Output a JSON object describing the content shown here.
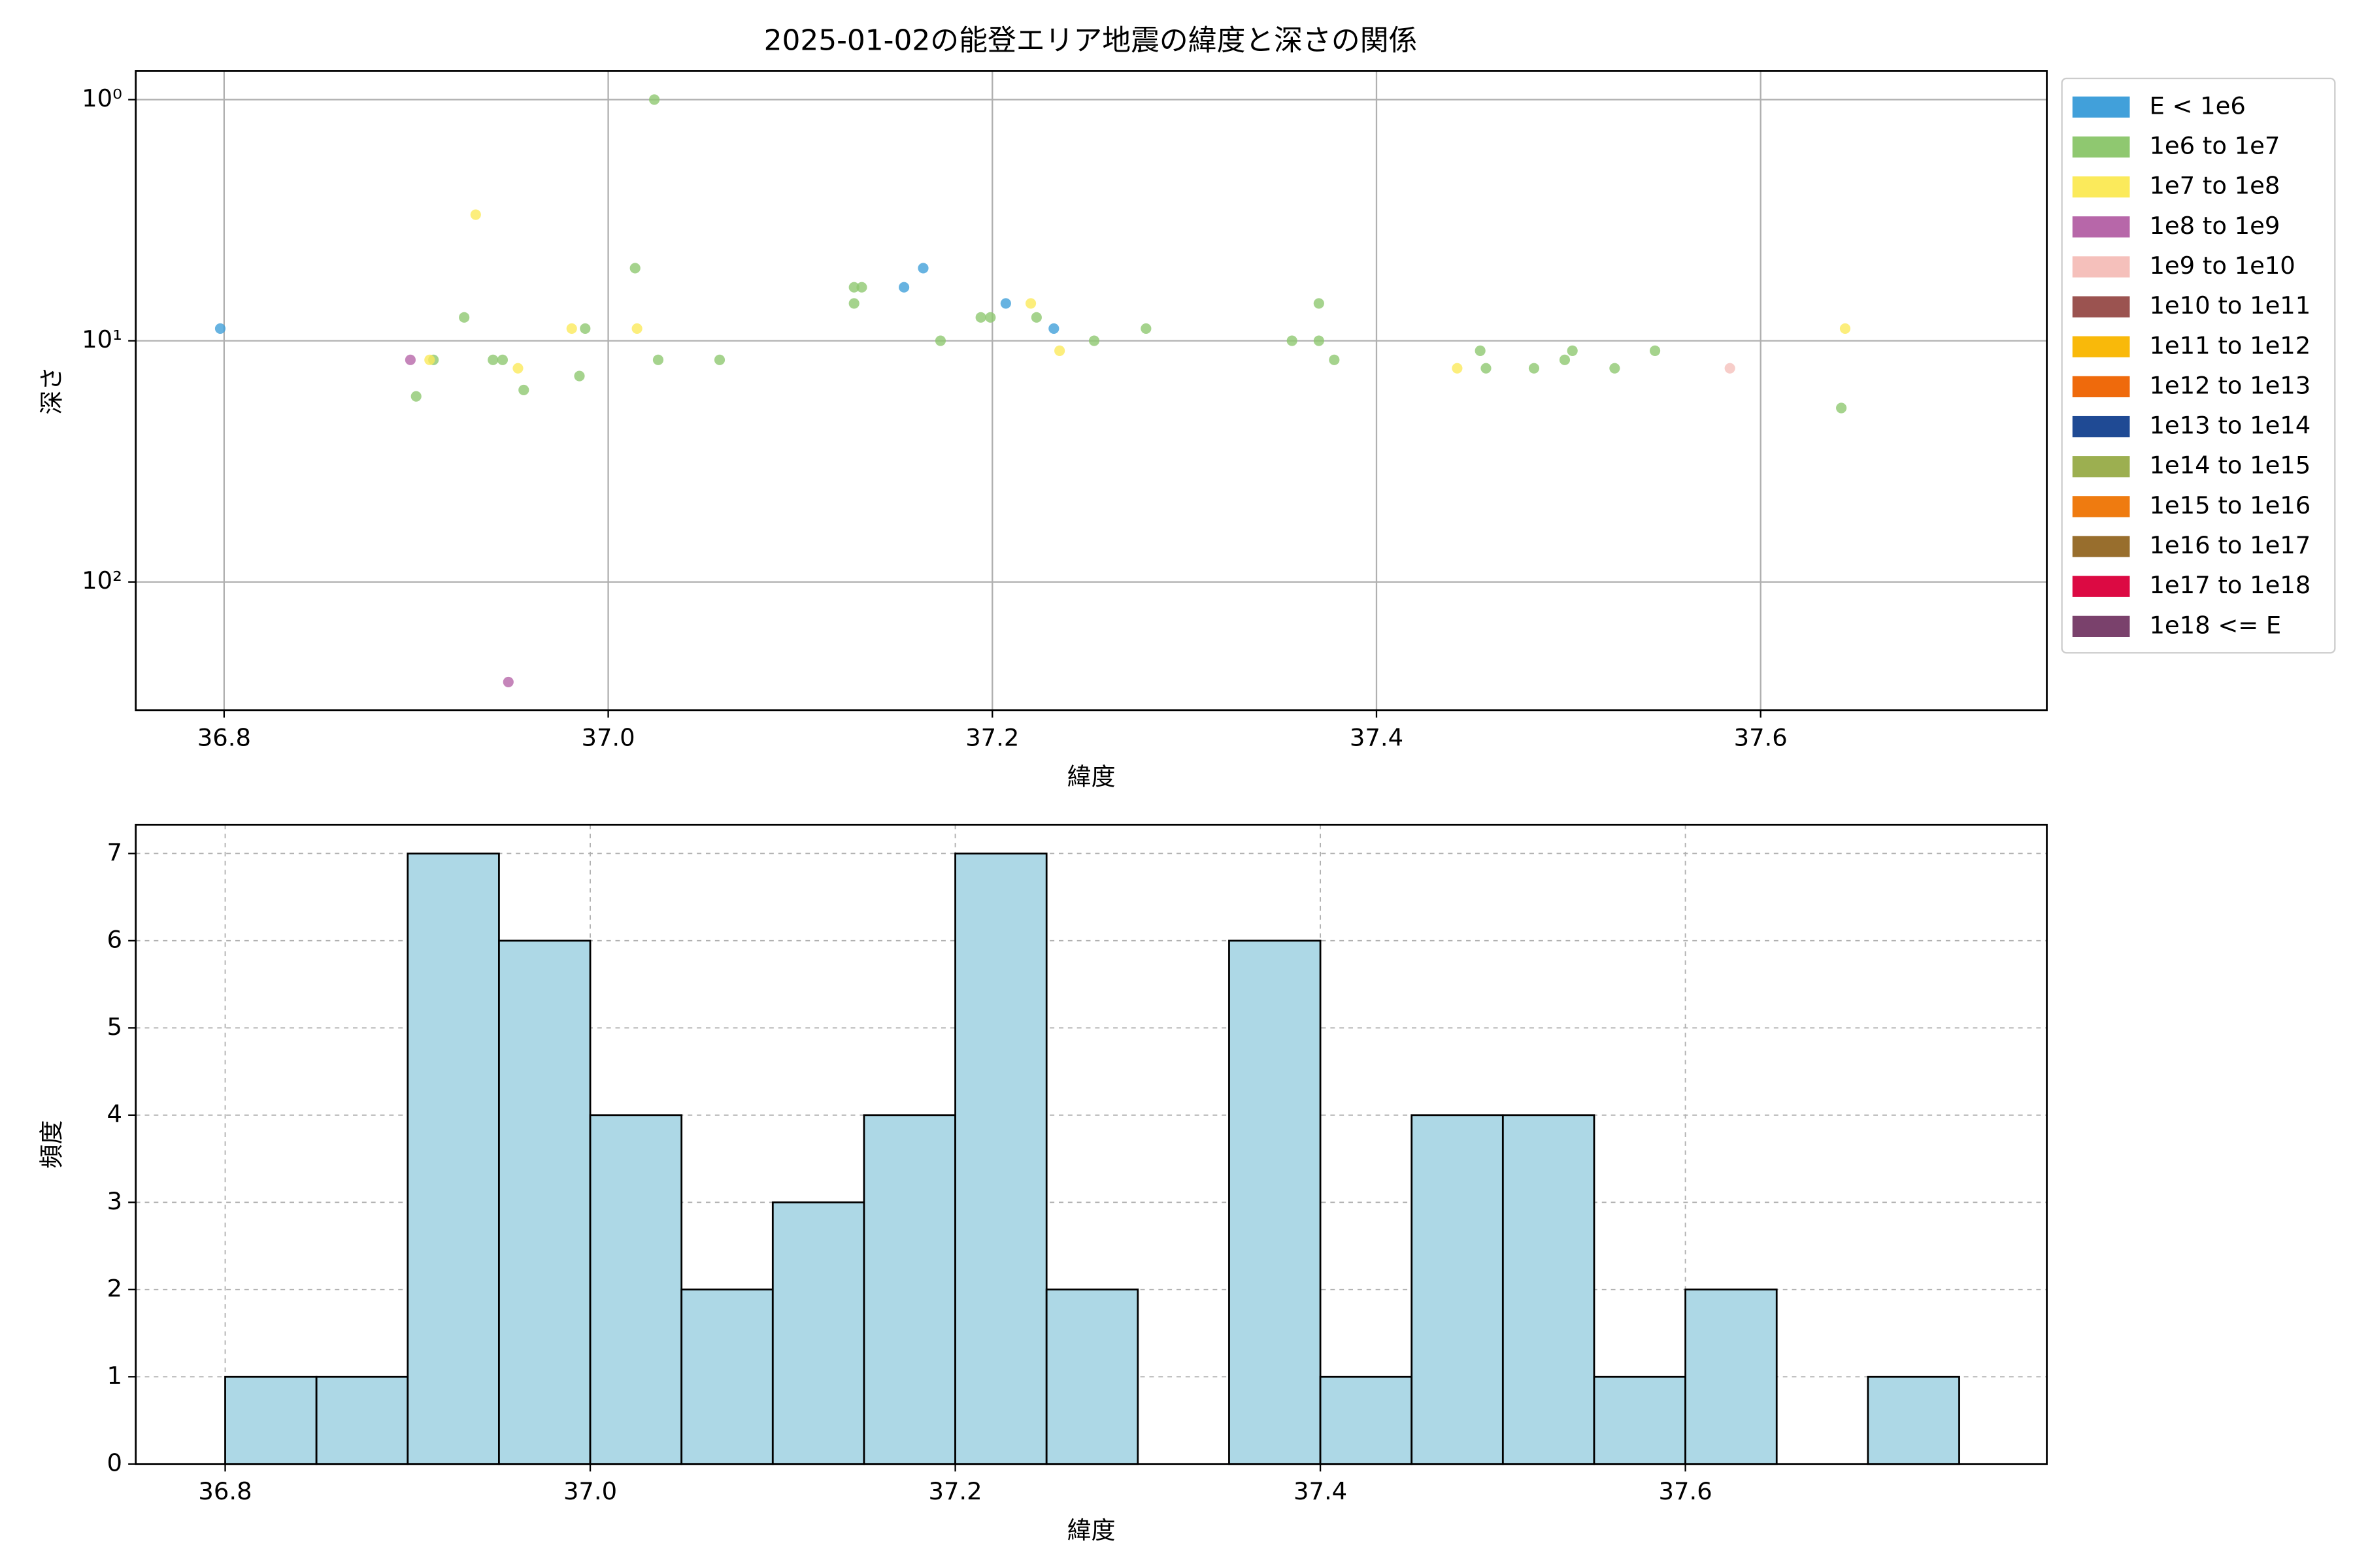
{
  "chart_data": [
    {
      "type": "scatter",
      "title": "2025-01-02の能登エリア地震の緯度と深さの関係",
      "xlabel": "緯度",
      "ylabel": "深さ",
      "log_y": true,
      "grid": true,
      "legend": "right",
      "xlim": [
        36.754,
        37.749
      ],
      "xticks": [
        36.8,
        {
          "value": 37,
          "label": "37.0"
        },
        37.2,
        37.4,
        37.6
      ],
      "ylim": [
        340,
        0.76
      ],
      "yticks": [
        {
          "value": 1,
          "label": "10⁰"
        },
        {
          "value": 10,
          "label": "10¹"
        },
        {
          "value": 100,
          "label": "10²"
        }
      ],
      "series": [
        {
          "name": "E < 1e6",
          "color": "#41a0da",
          "x": [
            36.798,
            37.154,
            37.164,
            37.207,
            37.232
          ],
          "values": [
            8.9,
            6,
            5,
            7,
            8.9
          ]
        },
        {
          "name": "1e6 to 1e7",
          "color": "#8fc870",
          "x": [
            36.909,
            36.925,
            36.94,
            36.945,
            36.956,
            36.985,
            36.988,
            36.9,
            37.014,
            37.024,
            37.026,
            37.058,
            37.128,
            37.132,
            37.128,
            37.173,
            37.194,
            37.199,
            37.223,
            37.253,
            37.28,
            37.356,
            37.37,
            37.37,
            37.378,
            37.454,
            37.457,
            37.482,
            37.498,
            37.502,
            37.524,
            37.545,
            37.642
          ],
          "values": [
            12,
            8,
            12,
            12,
            16,
            14,
            8.9,
            17,
            5,
            1,
            12,
            12,
            6,
            6,
            7,
            10,
            8,
            8,
            8,
            10,
            8.9,
            10,
            7,
            10,
            12,
            11,
            13,
            13,
            12,
            11,
            13,
            11,
            19
          ]
        },
        {
          "name": "1e7 to 1e8",
          "color": "#fbea5b",
          "x": [
            36.907,
            36.931,
            36.953,
            36.981,
            37.015,
            37.22,
            37.235,
            37.442,
            37.644
          ],
          "values": [
            12,
            3,
            13,
            8.9,
            8.9,
            7,
            11,
            13,
            8.9
          ]
        },
        {
          "name": "1e8 to 1e9",
          "color": "#b767a9",
          "x": [
            36.897,
            36.948
          ],
          "values": [
            12,
            260
          ]
        },
        {
          "name": "1e9 to 1e10",
          "color": "#f5c0bb",
          "x": [
            37.584
          ],
          "values": [
            13
          ]
        },
        {
          "name": "1e10 to 1e11",
          "color": "#9b5350",
          "x": [],
          "values": []
        },
        {
          "name": "1e11 to 1e12",
          "color": "#f9b90a",
          "x": [],
          "values": []
        },
        {
          "name": "1e12 to 1e13",
          "color": "#ef6a0c",
          "x": [],
          "values": []
        },
        {
          "name": "1e13 to 1e14",
          "color": "#1f4a94",
          "x": [],
          "values": []
        },
        {
          "name": "1e14 to 1e15",
          "color": "#9caf50",
          "x": [],
          "values": []
        },
        {
          "name": "1e15 to 1e16",
          "color": "#ef7b10",
          "x": [],
          "values": []
        },
        {
          "name": "1e16 to 1e17",
          "color": "#986e2d",
          "x": [],
          "values": []
        },
        {
          "name": "1e17 to 1e18",
          "color": "#dc0a43",
          "x": [],
          "values": []
        },
        {
          "name": "1e18 <= E",
          "color": "#7a416c",
          "x": [],
          "values": []
        }
      ]
    },
    {
      "type": "histogram",
      "xlabel": "緯度",
      "ylabel": "頻度",
      "color": "#add8e6",
      "grid": true,
      "xlim": [
        36.751,
        37.798
      ],
      "xticks": [
        36.8,
        {
          "value": 37,
          "label": "37.0"
        },
        37.2,
        37.4,
        37.6
      ],
      "ylim": [
        0,
        7.33
      ],
      "yticks": [
        0,
        1,
        2,
        3,
        4,
        5,
        6,
        7
      ],
      "bins": [
        36.8,
        36.85,
        36.9,
        36.95,
        37,
        37.05,
        37.1,
        37.15,
        37.2,
        37.25,
        37.3,
        37.35,
        37.4,
        37.45,
        37.5,
        37.55,
        37.6,
        37.65,
        37.7,
        37.75
      ],
      "values": [
        1,
        1,
        7,
        6,
        4,
        2,
        3,
        4,
        7,
        2,
        0,
        6,
        1,
        4,
        4,
        1,
        2,
        0,
        1
      ]
    }
  ]
}
